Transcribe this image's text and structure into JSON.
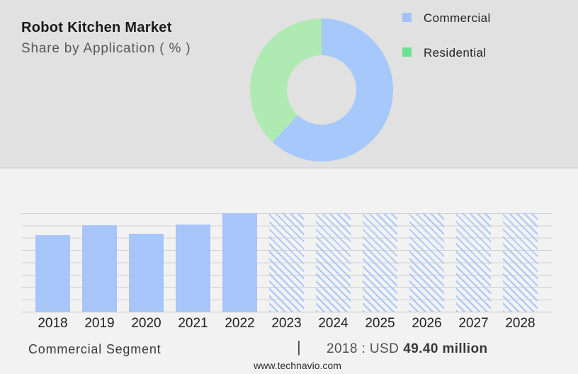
{
  "header": {
    "title": "Robot Kitchen Market",
    "subtitle": "Share by Application ( % )"
  },
  "legend": {
    "items": [
      {
        "label": "Commercial",
        "color": "#a2c3fa"
      },
      {
        "label": "Residential",
        "color": "#6de28e"
      }
    ]
  },
  "caption": {
    "segment_label": "Commercial Segment",
    "divider": "|",
    "stat_prefix": "2018 : USD",
    "stat_value": "49.40 million"
  },
  "footer": {
    "website": "www.technavio.com"
  },
  "colors": {
    "header_background": "#e1e1e1",
    "body_background": "#f2f2f3",
    "donut_commercial": "#a6c8fa",
    "donut_residential": "#aeeab2",
    "bar_fill": "#a7c5f9",
    "hatch_stroke": "#a9c7f8",
    "gridline": "#d2d2d2"
  },
  "chart_data": [
    {
      "type": "pie",
      "subtype": "donut",
      "title": "Share by Application ( % )",
      "labels": [
        "Commercial",
        "Residential"
      ],
      "values": [
        62,
        38
      ],
      "colors": [
        "#a6c8fa",
        "#aeeab2"
      ],
      "legend_position": "right",
      "note": "No data labels shown; values estimated from arc angles (blue starts at 12 o'clock, clockwise)."
    },
    {
      "type": "bar",
      "title": "Commercial Segment, 2018-2028",
      "categories": [
        "2018",
        "2019",
        "2020",
        "2021",
        "2022",
        "2023",
        "2024",
        "2025",
        "2026",
        "2027",
        "2028"
      ],
      "values": [
        77.5,
        88,
        79,
        88.5,
        100,
        100,
        100,
        100,
        100,
        100,
        100
      ],
      "ylabel": "",
      "xlabel": "",
      "unit": "relative bar height, % of 2022 bar (no y-axis tick labels shown)",
      "solid_bar_count": 5,
      "forecast_years": [
        "2023",
        "2024",
        "2025",
        "2026",
        "2027",
        "2028"
      ],
      "forecast_style": "diagonal-hatch",
      "grid": "horizontal, 9 gridlines",
      "annotation": "2018 : USD 49.40 million"
    }
  ]
}
